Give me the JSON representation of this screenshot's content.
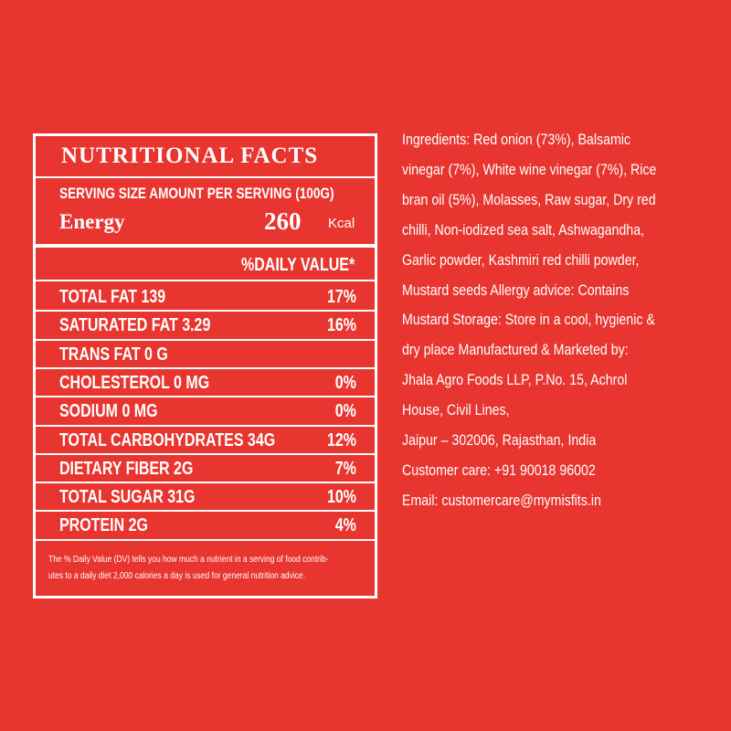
{
  "nutrition": {
    "title": "NUTRITIONAL FACTS",
    "serving": "SERVING SIZE AMOUNT PER SERVING (100G)",
    "energy_label": "Energy",
    "energy_value": "260",
    "energy_unit": "Kcal",
    "daily_value_header": "%DAILY VALUE*",
    "rows": [
      {
        "label": "TOTAL FAT 139",
        "daily_value": "17%"
      },
      {
        "label": "SATURATED FAT 3.29",
        "daily_value": "16%"
      },
      {
        "label": "TRANS FAT 0 G"
      },
      {
        "label": "CHOLESTEROL 0 MG",
        "daily_value": "0%"
      },
      {
        "label": "SODIUM 0 MG",
        "daily_value": "0%"
      },
      {
        "label": "TOTAL CARBOHYDRATES 34G",
        "daily_value": "12%"
      },
      {
        "label": "DIETARY FIBER 2G",
        "daily_value": "7%"
      },
      {
        "label": "TOTAL SUGAR 31G",
        "daily_value": "10%"
      },
      {
        "label": "PROTEIN 2G",
        "daily_value": "4%"
      }
    ],
    "footnote": [
      "The % Daily Value (DV) tells you how much a nutrient in a serving of food contrib-",
      "utes to a daily diet 2,000 calories a day is used for general nutrition advice."
    ]
  },
  "ingredients": {
    "lines": [
      "Ingredients: Red onion (73%), Balsamic",
      "vinegar (7%), White wine vinegar (7%), Rice",
      "bran oil (5%), Molasses, Raw sugar, Dry red",
      "chilli, Non-iodized sea salt, Ashwagandha,",
      "Garlic powder, Kashmiri red chilli powder,",
      "Mustard seeds Allergy advice: Contains",
      "Mustard Storage: Store in a cool, hygienic &",
      "dry place Manufactured & Marketed by:",
      "Jhala Agro Foods LLP, P.No. 15, Achrol",
      "House, Civil Lines,",
      "Jaipur – 302006, Rajasthan, India",
      "Customer care: +91 90018 96002",
      "Email: customercare@mymisfits.in"
    ]
  }
}
